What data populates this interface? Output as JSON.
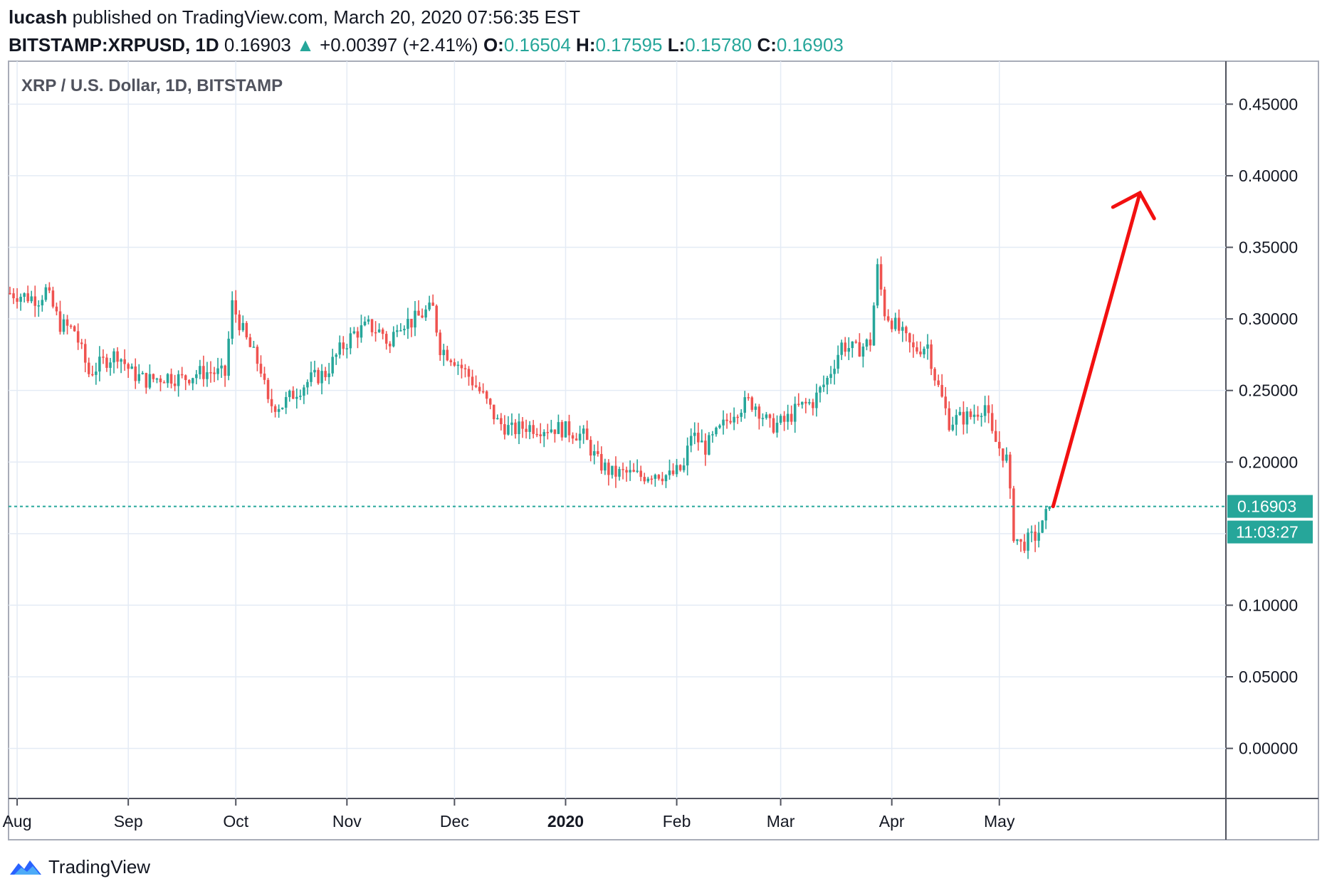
{
  "header": {
    "author": "lucash",
    "published_text": "published on TradingView.com, March 20, 2020 07:56:35 EST",
    "symbol": "BITSTAMP:XRPUSD, 1D",
    "last": "0.16903",
    "change_arrow": "▲",
    "change": "+0.00397 (+2.41%)",
    "o_label": "O:",
    "o_value": "0.16504",
    "h_label": "H:",
    "h_value": "0.17595",
    "l_label": "L:",
    "l_value": "0.15780",
    "c_label": "C:",
    "c_value": "0.16903"
  },
  "chart_data": {
    "type": "candlestick",
    "title": "XRP / U.S. Dollar, 1D, BITSTAMP",
    "y_ticks": [
      "0.45000",
      "0.40000",
      "0.35000",
      "0.30000",
      "0.25000",
      "0.20000",
      "0.10000",
      "0.05000",
      "0.00000"
    ],
    "x_ticks": [
      "Aug",
      "Sep",
      "Oct",
      "Nov",
      "Dec",
      "2020",
      "Feb",
      "Mar",
      "Apr",
      "May"
    ],
    "ylim": [
      -0.035,
      0.48
    ],
    "last_price": 0.16903,
    "last_price_label": "0.16903",
    "countdown_label": "11:03:27",
    "up_color": "#26a69a",
    "down_color": "#ef5350",
    "arrow_color": "#f21010",
    "arrow": {
      "from_price": 0.169,
      "to_price": 0.392
    },
    "grid": true,
    "price_path": [
      [
        0,
        0.318
      ],
      [
        8,
        0.314
      ],
      [
        10,
        0.32
      ],
      [
        14,
        0.296
      ],
      [
        18,
        0.292
      ],
      [
        22,
        0.262
      ],
      [
        26,
        0.27
      ],
      [
        30,
        0.276
      ],
      [
        34,
        0.262
      ],
      [
        38,
        0.257
      ],
      [
        44,
        0.26
      ],
      [
        48,
        0.258
      ],
      [
        52,
        0.262
      ],
      [
        56,
        0.263
      ],
      [
        60,
        0.261
      ],
      [
        62,
        0.31
      ],
      [
        66,
        0.285
      ],
      [
        70,
        0.265
      ],
      [
        72,
        0.24
      ],
      [
        76,
        0.24
      ],
      [
        80,
        0.25
      ],
      [
        84,
        0.258
      ],
      [
        88,
        0.262
      ],
      [
        92,
        0.278
      ],
      [
        96,
        0.29
      ],
      [
        100,
        0.295
      ],
      [
        104,
        0.29
      ],
      [
        106,
        0.28
      ],
      [
        108,
        0.298
      ],
      [
        112,
        0.298
      ],
      [
        116,
        0.305
      ],
      [
        118,
        0.307
      ],
      [
        120,
        0.28
      ],
      [
        124,
        0.272
      ],
      [
        128,
        0.26
      ],
      [
        132,
        0.246
      ],
      [
        136,
        0.228
      ],
      [
        140,
        0.222
      ],
      [
        144,
        0.225
      ],
      [
        148,
        0.224
      ],
      [
        152,
        0.224
      ],
      [
        156,
        0.222
      ],
      [
        160,
        0.218
      ],
      [
        164,
        0.2
      ],
      [
        168,
        0.192
      ],
      [
        172,
        0.192
      ],
      [
        176,
        0.19
      ],
      [
        180,
        0.193
      ],
      [
        184,
        0.19
      ],
      [
        188,
        0.196
      ],
      [
        190,
        0.22
      ],
      [
        194,
        0.21
      ],
      [
        198,
        0.222
      ],
      [
        202,
        0.236
      ],
      [
        206,
        0.242
      ],
      [
        208,
        0.24
      ],
      [
        212,
        0.225
      ],
      [
        216,
        0.228
      ],
      [
        220,
        0.238
      ],
      [
        224,
        0.242
      ],
      [
        228,
        0.258
      ],
      [
        232,
        0.282
      ],
      [
        236,
        0.278
      ],
      [
        240,
        0.284
      ],
      [
        242,
        0.335
      ],
      [
        244,
        0.305
      ],
      [
        248,
        0.292
      ],
      [
        252,
        0.278
      ],
      [
        256,
        0.282
      ],
      [
        258,
        0.26
      ],
      [
        262,
        0.228
      ],
      [
        264,
        0.23
      ],
      [
        268,
        0.232
      ],
      [
        272,
        0.24
      ],
      [
        274,
        0.218
      ],
      [
        278,
        0.202
      ],
      [
        280,
        0.15
      ],
      [
        282,
        0.142
      ],
      [
        286,
        0.148
      ],
      [
        288,
        0.155
      ],
      [
        290,
        0.169
      ]
    ]
  },
  "footer": {
    "brand": "TradingView"
  }
}
